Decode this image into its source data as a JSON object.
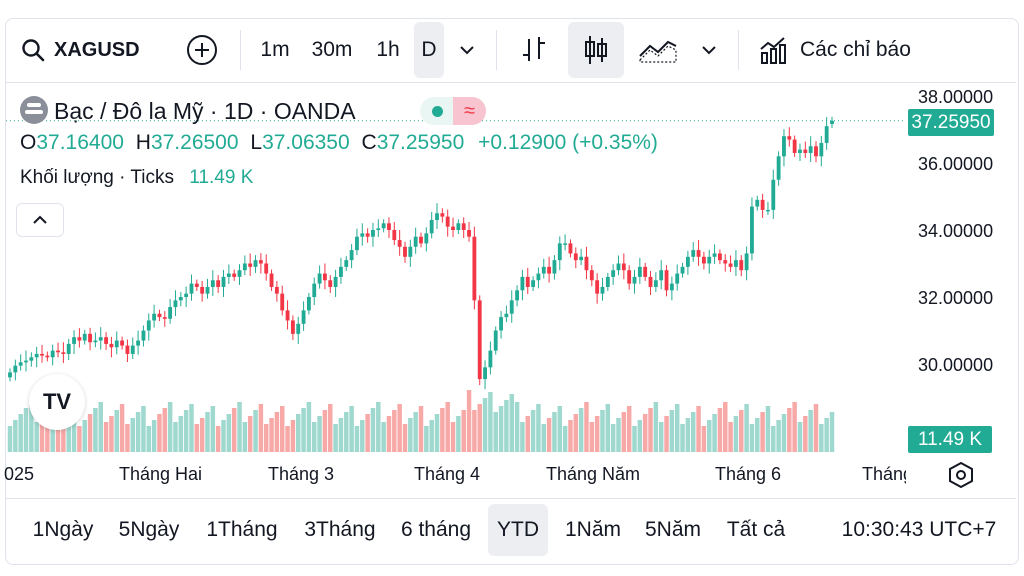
{
  "toolbar": {
    "symbol": "XAGUSD",
    "intervals": [
      "1m",
      "30m",
      "1h",
      "D"
    ],
    "selected_interval": "D",
    "indicators_label": "Các chỉ báo"
  },
  "legend": {
    "title": "Bạc / Đô la Mỹ · 1D · OANDA",
    "o_label": "O",
    "o_value": "37.16400",
    "h_label": "H",
    "h_value": "37.26500",
    "l_label": "L",
    "l_value": "37.06350",
    "c_label": "C",
    "c_value": "37.25950",
    "change": "+0.12900 (+0.35%)",
    "volume_label": "Khối lượng · Ticks",
    "volume_value": "11.49 K"
  },
  "price_axis": {
    "ticks": [
      "38.00000",
      "36.00000",
      "34.00000",
      "32.00000",
      "30.00000"
    ],
    "current_price": "37.25950",
    "current_volume": "11.49 K"
  },
  "time_axis": {
    "labels": [
      "025",
      "Tháng Hai",
      "Tháng 3",
      "Tháng 4",
      "Tháng Năm",
      "Tháng 6",
      "Tháng"
    ]
  },
  "ranges": {
    "items": [
      "1Ngày",
      "5Ngày",
      "1Tháng",
      "3Tháng",
      "6 tháng",
      "YTD",
      "1Năm",
      "5Năm",
      "Tất cả"
    ],
    "selected": "YTD",
    "clock": "10:30:43 UTC+7"
  },
  "colors": {
    "up": "#22ab94",
    "down": "#f23645",
    "vol_up": "#9fd8cf",
    "vol_down": "#f7a9a7"
  },
  "chart_data": {
    "type": "candlestick",
    "ylim": [
      29.0,
      38.2
    ],
    "close": [
      29.75,
      29.95,
      30.05,
      30.1,
      30.2,
      30.3,
      30.25,
      30.2,
      30.4,
      30.35,
      30.3,
      30.6,
      30.8,
      30.7,
      30.9,
      30.65,
      30.7,
      30.8,
      30.6,
      30.5,
      30.7,
      30.55,
      30.3,
      30.55,
      30.7,
      31.0,
      31.3,
      31.5,
      31.4,
      31.35,
      31.7,
      31.9,
      32.0,
      32.1,
      32.4,
      32.3,
      32.1,
      32.3,
      32.5,
      32.3,
      32.6,
      32.7,
      32.6,
      32.8,
      33.0,
      32.9,
      33.1,
      33.0,
      32.7,
      32.3,
      32.1,
      31.6,
      31.3,
      30.9,
      31.2,
      31.6,
      32.0,
      32.4,
      32.7,
      32.5,
      32.3,
      32.6,
      32.9,
      33.1,
      33.4,
      33.8,
      33.9,
      33.8,
      34.0,
      34.05,
      34.2,
      34.0,
      33.7,
      33.5,
      33.2,
      33.5,
      33.8,
      33.6,
      33.9,
      34.3,
      34.5,
      34.4,
      34.1,
      34.0,
      34.2,
      34.0,
      33.8,
      31.9,
      29.55,
      29.9,
      30.4,
      31.0,
      31.4,
      31.5,
      31.9,
      32.2,
      32.6,
      32.3,
      32.5,
      32.7,
      32.9,
      32.7,
      33.1,
      33.6,
      33.6,
      33.3,
      33.1,
      33.2,
      32.8,
      32.5,
      32.1,
      32.3,
      32.6,
      32.8,
      33.0,
      32.8,
      32.4,
      32.6,
      32.9,
      32.6,
      32.3,
      32.5,
      32.8,
      32.2,
      32.4,
      32.7,
      32.9,
      33.2,
      33.4,
      33.2,
      33.0,
      33.2,
      33.3,
      33.1,
      33.0,
      32.9,
      33.1,
      32.8,
      33.3,
      34.7,
      34.9,
      34.6,
      34.6,
      35.5,
      36.2,
      36.8,
      36.7,
      36.3,
      36.4,
      36.3,
      36.5,
      36.2,
      36.6,
      37.1,
      37.26
    ],
    "open": [
      29.6,
      29.75,
      29.95,
      30.05,
      30.1,
      30.2,
      30.3,
      30.25,
      30.2,
      30.4,
      30.35,
      30.3,
      30.6,
      30.8,
      30.7,
      30.9,
      30.65,
      30.7,
      30.8,
      30.6,
      30.5,
      30.7,
      30.55,
      30.3,
      30.55,
      30.7,
      31.0,
      31.3,
      31.5,
      31.4,
      31.35,
      31.7,
      31.9,
      32.0,
      32.1,
      32.4,
      32.3,
      32.1,
      32.3,
      32.5,
      32.3,
      32.6,
      32.7,
      32.6,
      32.8,
      33.0,
      32.9,
      33.1,
      33.0,
      32.7,
      32.3,
      32.1,
      31.6,
      31.3,
      30.9,
      31.2,
      31.6,
      32.0,
      32.4,
      32.7,
      32.5,
      32.3,
      32.6,
      32.9,
      33.1,
      33.4,
      33.8,
      33.9,
      33.8,
      34.0,
      34.05,
      34.2,
      34.0,
      33.7,
      33.5,
      33.2,
      33.5,
      33.8,
      33.6,
      33.9,
      34.3,
      34.5,
      34.4,
      34.1,
      34.0,
      34.2,
      34.0,
      33.8,
      31.9,
      29.55,
      29.9,
      30.4,
      31.0,
      31.4,
      31.5,
      31.9,
      32.2,
      32.6,
      32.3,
      32.5,
      32.7,
      32.9,
      32.7,
      33.1,
      33.6,
      33.6,
      33.3,
      33.1,
      33.2,
      32.8,
      32.5,
      32.1,
      32.3,
      32.6,
      32.8,
      33.0,
      32.8,
      32.4,
      32.6,
      32.9,
      32.6,
      32.3,
      32.5,
      32.8,
      32.2,
      32.4,
      32.7,
      32.9,
      33.2,
      33.4,
      33.2,
      33.0,
      33.2,
      33.3,
      33.1,
      33.0,
      32.9,
      33.1,
      32.8,
      33.3,
      34.7,
      34.9,
      34.6,
      34.6,
      35.5,
      36.2,
      36.8,
      36.7,
      36.3,
      36.4,
      36.3,
      36.5,
      36.2,
      36.6,
      37.164
    ]
  }
}
